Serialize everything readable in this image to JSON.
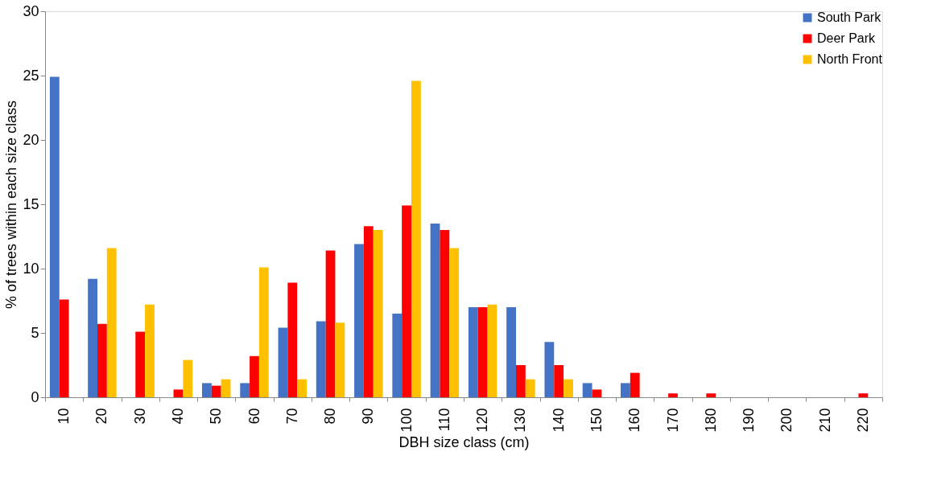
{
  "chart_data": {
    "type": "bar",
    "xlabel": "DBH size class (cm)",
    "ylabel": "% of trees within each size class",
    "categories": [
      "10",
      "20",
      "30",
      "40",
      "50",
      "60",
      "70",
      "80",
      "90",
      "100",
      "110",
      "120",
      "130",
      "140",
      "150",
      "160",
      "170",
      "180",
      "190",
      "200",
      "210",
      "220"
    ],
    "series": [
      {
        "name": "South Park",
        "color": "#4472c4",
        "values": [
          24.9,
          9.2,
          0,
          0,
          1.1,
          1.1,
          5.4,
          5.9,
          11.9,
          6.5,
          13.5,
          7.0,
          7.0,
          4.3,
          1.1,
          1.1,
          0,
          0,
          0,
          0,
          0,
          0
        ]
      },
      {
        "name": "Deer Park",
        "color": "#ff0000",
        "values": [
          7.6,
          5.7,
          5.1,
          0.6,
          0.9,
          3.2,
          8.9,
          11.4,
          13.3,
          14.9,
          13.0,
          7.0,
          2.5,
          2.5,
          0.6,
          1.9,
          0.3,
          0.3,
          0,
          0,
          0,
          0.3
        ]
      },
      {
        "name": "North Front",
        "color": "#ffc000",
        "values": [
          0,
          11.6,
          7.2,
          2.9,
          1.4,
          10.1,
          1.4,
          5.8,
          13.0,
          24.6,
          11.6,
          7.2,
          1.4,
          1.4,
          0,
          0,
          0,
          0,
          0,
          0,
          0,
          0
        ]
      }
    ],
    "ylim": [
      0,
      30
    ],
    "yticks": [
      0,
      5,
      10,
      15,
      20,
      25,
      30
    ],
    "grid": false,
    "legend": "top right"
  }
}
